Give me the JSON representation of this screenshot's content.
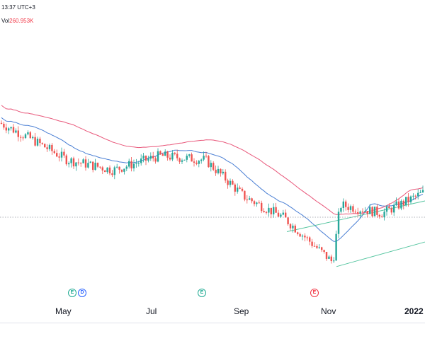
{
  "header": {
    "time": "13:37 UTC+3",
    "vol_label": "Vol",
    "vol_value": "260.953K"
  },
  "markers": [
    {
      "label": "E",
      "kind": "earnings"
    },
    {
      "label": "D",
      "kind": "dividend"
    },
    {
      "label": "E",
      "kind": "earnings"
    },
    {
      "label": "E",
      "kind": "earnings-negative"
    }
  ],
  "colors": {
    "up": "#26a69a",
    "down": "#ef5350",
    "ma_fast": "#4a7fd4",
    "ma_slow": "#e8577a",
    "channel": "#52c49e"
  },
  "chart_data": {
    "type": "candlestick",
    "price_scale": [
      0,
      100
    ],
    "x_axis": {
      "scale": "months",
      "start": "Mar",
      "end": "Jan 2022",
      "tick_labels": [
        "May",
        "Jul",
        "Sep",
        "Nov",
        "2022"
      ]
    },
    "trend": "Decline from March to early November, a gap up in early November, then sideways-to-higher into the new year",
    "checkpoints": [
      {
        "month": "Mar",
        "close": 78
      },
      {
        "month": "Apr",
        "close": 70
      },
      {
        "month": "May",
        "close": 60
      },
      {
        "month": "Jun",
        "close": 55
      },
      {
        "month": "Jul",
        "close": 62
      },
      {
        "month": "Aug",
        "close": 60
      },
      {
        "month": "Sep",
        "close": 42
      },
      {
        "month": "Oct",
        "close": 32
      },
      {
        "month": "Nov",
        "close": 10
      },
      {
        "month": "Nov",
        "close": 38
      },
      {
        "month": "Dec",
        "close": 34
      },
      {
        "month": "2022",
        "close": 44
      }
    ],
    "series": [
      {
        "name": "",
        "type": "moving-average",
        "color": "#4a7fd4"
      },
      {
        "name": "",
        "type": "moving-average",
        "color": "#e8577a"
      },
      {
        "name": "",
        "type": "trend-channel",
        "color": "#52c49e"
      }
    ],
    "grid": false,
    "title": "",
    "xlabel": "",
    "ylabel": ""
  }
}
